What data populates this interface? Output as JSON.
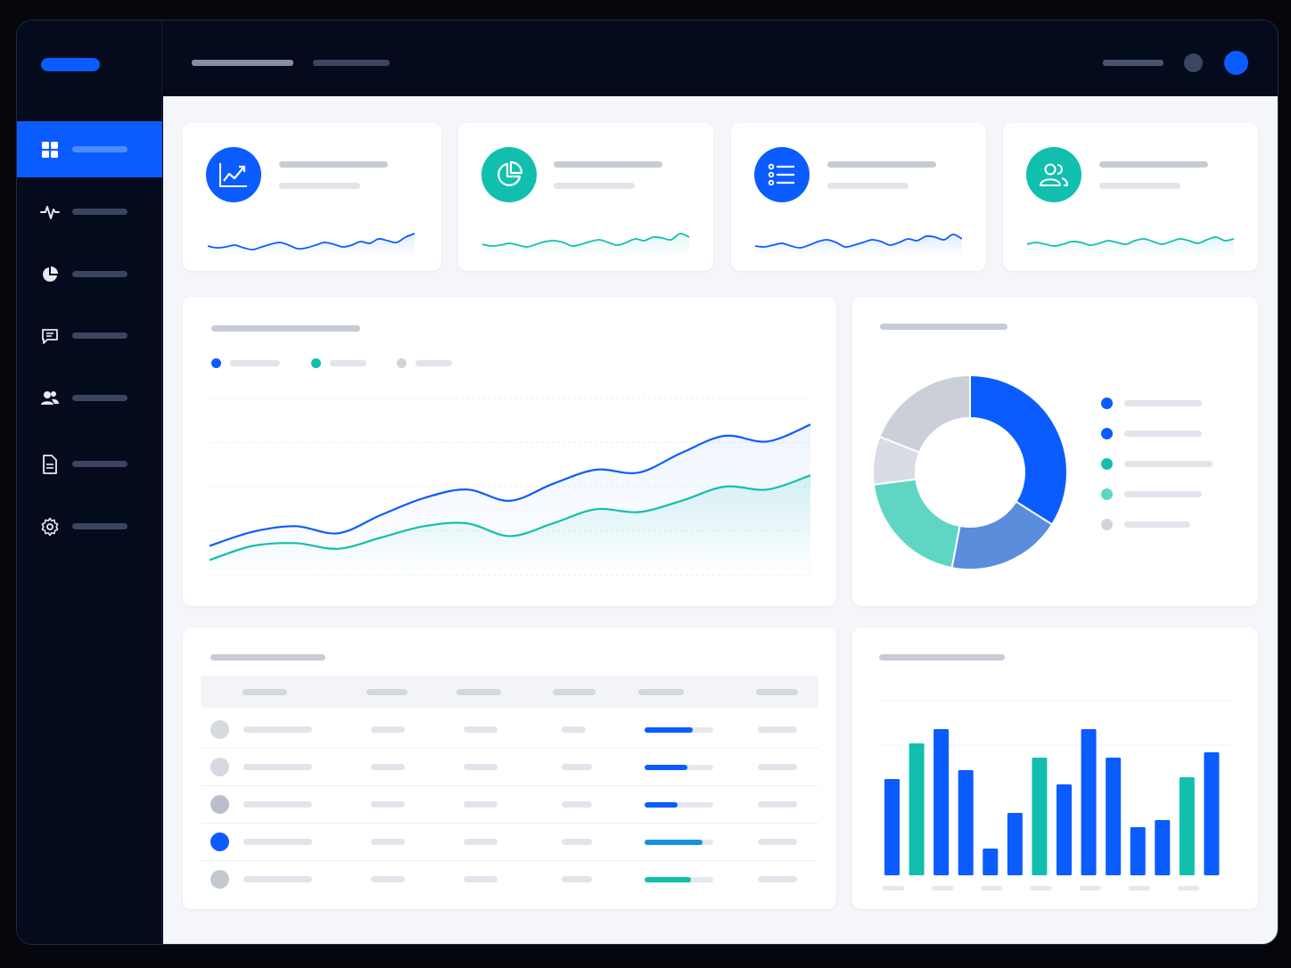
{
  "colors": {
    "primary": "#0b5cff",
    "teal": "#12bfae",
    "sidebar_bg": "#040b1c",
    "content_bg": "#f4f6fa",
    "gray_dot": "#d0d4db"
  },
  "sidebar": {
    "items": [
      {
        "icon": "grid-icon",
        "active": true
      },
      {
        "icon": "activity-icon",
        "active": false
      },
      {
        "icon": "pie-chart-icon",
        "active": false
      },
      {
        "icon": "message-icon",
        "active": false
      },
      {
        "icon": "users-icon",
        "active": false
      },
      {
        "icon": "document-icon",
        "active": false
      },
      {
        "icon": "gear-icon",
        "active": false
      }
    ]
  },
  "kpi_cards": [
    {
      "icon": "line-chart-icon",
      "color": "#0b5cff",
      "spark": [
        32,
        34,
        33,
        31,
        34,
        36,
        33,
        30,
        28,
        31,
        35,
        34,
        31,
        28,
        30,
        33,
        31,
        27,
        29,
        24,
        26,
        28,
        22,
        18
      ]
    },
    {
      "icon": "pie-chart-icon",
      "color": "#12bfae",
      "spark": [
        30,
        32,
        31,
        29,
        31,
        33,
        30,
        27,
        26,
        28,
        32,
        30,
        27,
        25,
        28,
        31,
        28,
        24,
        26,
        22,
        23,
        25,
        18,
        22
      ]
    },
    {
      "icon": "list-icon",
      "color": "#0b5cff",
      "spark": [
        32,
        33,
        31,
        29,
        32,
        34,
        31,
        27,
        25,
        28,
        33,
        31,
        28,
        25,
        27,
        31,
        28,
        24,
        26,
        21,
        22,
        25,
        19,
        24
      ]
    },
    {
      "icon": "users-icon",
      "color": "#12bfae",
      "spark": [
        30,
        28,
        30,
        32,
        30,
        27,
        28,
        31,
        29,
        26,
        28,
        30,
        26,
        24,
        27,
        30,
        27,
        24,
        26,
        29,
        25,
        22,
        26,
        24
      ]
    }
  ],
  "chart_data": [
    {
      "type": "line",
      "x": [
        0,
        1,
        2,
        3,
        4,
        5,
        6,
        7,
        8,
        9,
        10,
        11,
        12,
        13,
        14
      ],
      "series": [
        {
          "values": [
            18,
            28,
            32,
            27,
            40,
            52,
            58,
            50,
            62,
            72,
            70,
            84,
            96,
            92,
            104
          ]
        },
        {
          "values": [
            8,
            18,
            20,
            16,
            24,
            32,
            34,
            25,
            34,
            44,
            42,
            50,
            60,
            58,
            68
          ]
        }
      ],
      "ylim": [
        0,
        120
      ],
      "grid": true,
      "legend": "top-left"
    },
    {
      "type": "pie",
      "values": [
        34,
        19,
        20,
        8,
        19
      ],
      "colors": [
        "#0b5cff",
        "#5a8ddb",
        "#5fd6c3",
        "#d9dde3",
        "#cbd0d8"
      ]
    },
    {
      "type": "bar",
      "values": [
        54,
        74,
        82,
        59,
        15,
        35,
        66,
        51,
        82,
        66,
        27,
        31,
        55,
        69
      ],
      "colors": [
        "#0b5cff",
        "#12bfae",
        "#0b5cff",
        "#0b5cff",
        "#0b5cff",
        "#0b5cff",
        "#12bfae",
        "#0b5cff",
        "#0b5cff",
        "#0b5cff",
        "#0b5cff",
        "#0b5cff",
        "#12bfae",
        "#0b5cff"
      ],
      "ylim": [
        0,
        100
      ]
    }
  ],
  "table": {
    "rows": [
      {
        "avatar": "#d6d9df",
        "progress": 0.7,
        "color": "#0b5cff"
      },
      {
        "avatar": "#d6d9df",
        "progress": 0.62,
        "color": "#0b5cff"
      },
      {
        "avatar": "#b9bfc9",
        "progress": 0.48,
        "color": "#0b5cff"
      },
      {
        "avatar": "#0b5cff",
        "progress": 0.85,
        "color": "#1a8fe0"
      },
      {
        "avatar": "#c3c8d1",
        "progress": 0.68,
        "color": "#12bfae"
      }
    ]
  }
}
